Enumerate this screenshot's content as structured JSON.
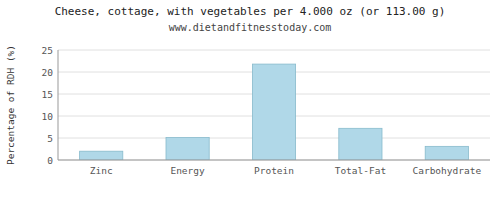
{
  "chart_data": {
    "type": "bar",
    "title": "Cheese, cottage, with vegetables per 4.000 oz (or 113.00 g)",
    "subtitle": "www.dietandfitnesstoday.com",
    "ylabel": "Percentage of RDH (%)",
    "categories": [
      "Zinc",
      "Energy",
      "Protein",
      "Total-Fat",
      "Carbohydrate"
    ],
    "values": [
      2.0,
      5.1,
      21.8,
      7.2,
      3.1
    ],
    "color": "#b0d8e8",
    "ylim": [
      0,
      25
    ],
    "yticks": [
      0,
      5,
      10,
      15,
      20,
      25
    ],
    "grid": true
  }
}
